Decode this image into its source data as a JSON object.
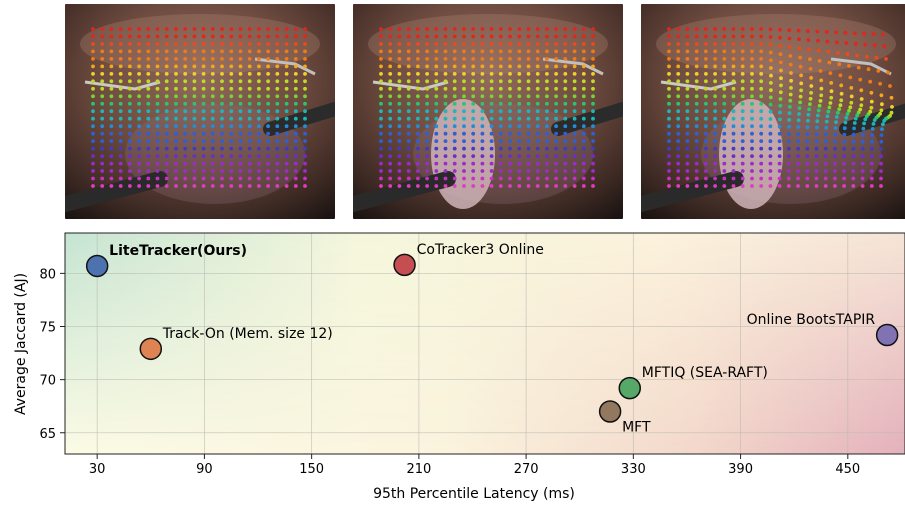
{
  "frames": [
    {
      "tracks": "grid"
    },
    {
      "tracks": "grid"
    },
    {
      "tracks": "deformed"
    }
  ],
  "chart_data": {
    "type": "scatter",
    "title": "",
    "xlabel": "95th Percentile Latency (ms)",
    "ylabel": "Average Jaccard (AJ)",
    "xlim": [
      12,
      482
    ],
    "ylim": [
      63,
      83.8
    ],
    "xticks": [
      30,
      90,
      150,
      210,
      270,
      330,
      390,
      450
    ],
    "yticks": [
      65,
      70,
      75,
      80
    ],
    "grid": true,
    "points": [
      {
        "label": "LiteTracker(Ours)",
        "x": 30,
        "y": 80.7,
        "color": "#4c72b0",
        "bold": true
      },
      {
        "label": "CoTracker3 Online",
        "x": 202,
        "y": 80.8,
        "color": "#c44e52",
        "bold": false
      },
      {
        "label": "Track-On (Mem. size 12)",
        "x": 60,
        "y": 72.9,
        "color": "#dd8452",
        "bold": false
      },
      {
        "label": "Online BootsTAPIR",
        "x": 472,
        "y": 74.2,
        "color": "#8172b3",
        "bold": false
      },
      {
        "label": "MFTIQ (SEA-RAFT)",
        "x": 328,
        "y": 69.2,
        "color": "#55a868",
        "bold": false
      },
      {
        "label": "MFT",
        "x": 317,
        "y": 67.0,
        "color": "#937860",
        "bold": false
      }
    ]
  }
}
